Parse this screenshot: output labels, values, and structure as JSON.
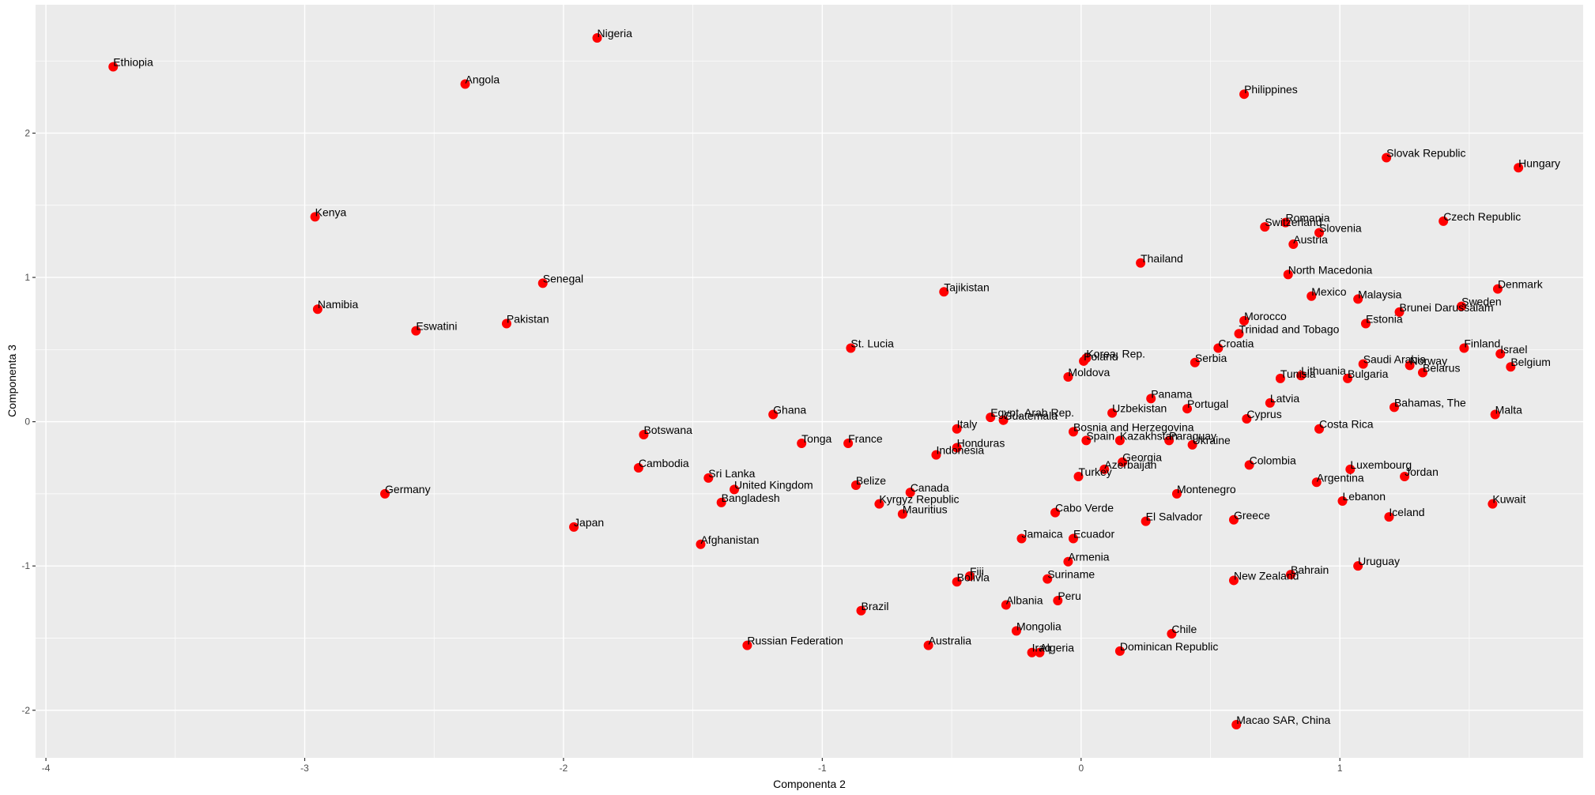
{
  "chart_data": {
    "type": "scatter",
    "title": "",
    "xlabel": "Componenta 2",
    "ylabel": "Componenta 3",
    "xlim": [
      -4.04,
      1.94
    ],
    "ylim": [
      -2.33,
      2.89
    ],
    "x_ticks": [
      -4,
      -3,
      -2,
      -1,
      0,
      1
    ],
    "y_ticks": [
      -2,
      -1,
      0,
      1,
      2
    ],
    "grid": true,
    "legend": null,
    "point_color": "#ff0000",
    "panel_background": "#ebebeb",
    "points": [
      {
        "label": "Ethiopia",
        "x": -3.74,
        "y": 2.46
      },
      {
        "label": "Nigeria",
        "x": -1.87,
        "y": 2.66
      },
      {
        "label": "Angola",
        "x": -2.38,
        "y": 2.34
      },
      {
        "label": "Philippines",
        "x": 0.63,
        "y": 2.27
      },
      {
        "label": "Slovak Republic",
        "x": 1.18,
        "y": 1.83
      },
      {
        "label": "Hungary",
        "x": 1.69,
        "y": 1.76
      },
      {
        "label": "Kenya",
        "x": -2.96,
        "y": 1.42
      },
      {
        "label": "Czech Republic",
        "x": 1.4,
        "y": 1.39
      },
      {
        "label": "Switzerland",
        "x": 0.71,
        "y": 1.35
      },
      {
        "label": "Romania",
        "x": 0.79,
        "y": 1.38
      },
      {
        "label": "Slovenia",
        "x": 0.92,
        "y": 1.31
      },
      {
        "label": "Austria",
        "x": 0.82,
        "y": 1.23
      },
      {
        "label": "Thailand",
        "x": 0.23,
        "y": 1.1
      },
      {
        "label": "North Macedonia",
        "x": 0.8,
        "y": 1.02
      },
      {
        "label": "Senegal",
        "x": -2.08,
        "y": 0.96
      },
      {
        "label": "Tajikistan",
        "x": -0.53,
        "y": 0.9
      },
      {
        "label": "Denmark",
        "x": 1.61,
        "y": 0.92
      },
      {
        "label": "Mexico",
        "x": 0.89,
        "y": 0.87
      },
      {
        "label": "Malaysia",
        "x": 1.07,
        "y": 0.85
      },
      {
        "label": "Namibia",
        "x": -2.95,
        "y": 0.78
      },
      {
        "label": "Sweden",
        "x": 1.47,
        "y": 0.8
      },
      {
        "label": "Brunei Darussalam",
        "x": 1.23,
        "y": 0.76
      },
      {
        "label": "Morocco",
        "x": 0.63,
        "y": 0.7
      },
      {
        "label": "Pakistan",
        "x": -2.22,
        "y": 0.68
      },
      {
        "label": "Estonia",
        "x": 1.1,
        "y": 0.68
      },
      {
        "label": "Eswatini",
        "x": -2.57,
        "y": 0.63
      },
      {
        "label": "Trinidad and Tobago",
        "x": 0.61,
        "y": 0.61
      },
      {
        "label": "Croatia",
        "x": 0.53,
        "y": 0.51
      },
      {
        "label": "St. Lucia",
        "x": -0.89,
        "y": 0.51
      },
      {
        "label": "Finland",
        "x": 1.48,
        "y": 0.51
      },
      {
        "label": "Israel",
        "x": 1.62,
        "y": 0.47
      },
      {
        "label": "Korea, Rep.",
        "x": 0.02,
        "y": 0.44
      },
      {
        "label": "Poland",
        "x": 0.01,
        "y": 0.42
      },
      {
        "label": "Serbia",
        "x": 0.44,
        "y": 0.41
      },
      {
        "label": "Saudi Arabia",
        "x": 1.09,
        "y": 0.4
      },
      {
        "label": "Norway",
        "x": 1.27,
        "y": 0.39
      },
      {
        "label": "Belgium",
        "x": 1.66,
        "y": 0.38
      },
      {
        "label": "Belarus",
        "x": 1.32,
        "y": 0.34
      },
      {
        "label": "Lithuania",
        "x": 0.85,
        "y": 0.32
      },
      {
        "label": "Bulgaria",
        "x": 1.03,
        "y": 0.3
      },
      {
        "label": "Tunisia",
        "x": 0.77,
        "y": 0.3
      },
      {
        "label": "Moldova",
        "x": -0.05,
        "y": 0.31
      },
      {
        "label": "Panama",
        "x": 0.27,
        "y": 0.16
      },
      {
        "label": "Latvia",
        "x": 0.73,
        "y": 0.13
      },
      {
        "label": "Bahamas, The",
        "x": 1.21,
        "y": 0.1
      },
      {
        "label": "Portugal",
        "x": 0.41,
        "y": 0.09
      },
      {
        "label": "Uzbekistan",
        "x": 0.12,
        "y": 0.06
      },
      {
        "label": "Ghana",
        "x": -1.19,
        "y": 0.05
      },
      {
        "label": "Malta",
        "x": 1.6,
        "y": 0.05
      },
      {
        "label": "Egypt, Arab Rep.",
        "x": -0.35,
        "y": 0.03
      },
      {
        "label": "Guatemala",
        "x": -0.3,
        "y": 0.01
      },
      {
        "label": "Cyprus",
        "x": 0.64,
        "y": 0.02
      },
      {
        "label": "Italy",
        "x": -0.48,
        "y": -0.05
      },
      {
        "label": "Costa Rica",
        "x": 0.92,
        "y": -0.05
      },
      {
        "label": "Bosnia and Herzegovina",
        "x": -0.03,
        "y": -0.07
      },
      {
        "label": "Botswana",
        "x": -1.69,
        "y": -0.09
      },
      {
        "label": "Spain",
        "x": 0.02,
        "y": -0.13
      },
      {
        "label": "Kazakhstan",
        "x": 0.15,
        "y": -0.13
      },
      {
        "label": "Paraguay",
        "x": 0.34,
        "y": -0.13
      },
      {
        "label": "Tonga",
        "x": -1.08,
        "y": -0.15
      },
      {
        "label": "France",
        "x": -0.9,
        "y": -0.15
      },
      {
        "label": "Ukraine",
        "x": 0.43,
        "y": -0.16
      },
      {
        "label": "Honduras",
        "x": -0.48,
        "y": -0.18
      },
      {
        "label": "Indonesia",
        "x": -0.56,
        "y": -0.23
      },
      {
        "label": "Georgia",
        "x": 0.16,
        "y": -0.28
      },
      {
        "label": "Colombia",
        "x": 0.65,
        "y": -0.3
      },
      {
        "label": "Cambodia",
        "x": -1.71,
        "y": -0.32
      },
      {
        "label": "Azerbaijan",
        "x": 0.09,
        "y": -0.33
      },
      {
        "label": "Luxembourg",
        "x": 1.04,
        "y": -0.33
      },
      {
        "label": "Sri Lanka",
        "x": -1.44,
        "y": -0.39
      },
      {
        "label": "Jordan",
        "x": 1.25,
        "y": -0.38
      },
      {
        "label": "Turkey",
        "x": -0.01,
        "y": -0.38
      },
      {
        "label": "Argentina",
        "x": 0.91,
        "y": -0.42
      },
      {
        "label": "United Kingdom",
        "x": -1.34,
        "y": -0.47
      },
      {
        "label": "Belize",
        "x": -0.87,
        "y": -0.44
      },
      {
        "label": "Canada",
        "x": -0.66,
        "y": -0.49
      },
      {
        "label": "Montenegro",
        "x": 0.37,
        "y": -0.5
      },
      {
        "label": "Germany",
        "x": -2.69,
        "y": -0.5
      },
      {
        "label": "Lebanon",
        "x": 1.01,
        "y": -0.55
      },
      {
        "label": "Bangladesh",
        "x": -1.39,
        "y": -0.56
      },
      {
        "label": "Kyrgyz Republic",
        "x": -0.78,
        "y": -0.57
      },
      {
        "label": "Kuwait",
        "x": 1.59,
        "y": -0.57
      },
      {
        "label": "Mauritius",
        "x": -0.69,
        "y": -0.64
      },
      {
        "label": "Cabo Verde",
        "x": -0.1,
        "y": -0.63
      },
      {
        "label": "Iceland",
        "x": 1.19,
        "y": -0.66
      },
      {
        "label": "Greece",
        "x": 0.59,
        "y": -0.68
      },
      {
        "label": "El Salvador",
        "x": 0.25,
        "y": -0.69
      },
      {
        "label": "Japan",
        "x": -1.96,
        "y": -0.73
      },
      {
        "label": "Jamaica",
        "x": -0.23,
        "y": -0.81
      },
      {
        "label": "Ecuador",
        "x": -0.03,
        "y": -0.81
      },
      {
        "label": "Afghanistan",
        "x": -1.47,
        "y": -0.85
      },
      {
        "label": "Armenia",
        "x": -0.05,
        "y": -0.97
      },
      {
        "label": "Uruguay",
        "x": 1.07,
        "y": -1.0
      },
      {
        "label": "Bahrain",
        "x": 0.81,
        "y": -1.06
      },
      {
        "label": "Fiji",
        "x": -0.43,
        "y": -1.07
      },
      {
        "label": "Bolivia",
        "x": -0.48,
        "y": -1.11
      },
      {
        "label": "Suriname",
        "x": -0.13,
        "y": -1.09
      },
      {
        "label": "New Zealand",
        "x": 0.59,
        "y": -1.1
      },
      {
        "label": "Peru",
        "x": -0.09,
        "y": -1.24
      },
      {
        "label": "Albania",
        "x": -0.29,
        "y": -1.27
      },
      {
        "label": "Brazil",
        "x": -0.85,
        "y": -1.31
      },
      {
        "label": "Mongolia",
        "x": -0.25,
        "y": -1.45
      },
      {
        "label": "Chile",
        "x": 0.35,
        "y": -1.47
      },
      {
        "label": "Russian Federation",
        "x": -1.29,
        "y": -1.55
      },
      {
        "label": "Australia",
        "x": -0.59,
        "y": -1.55
      },
      {
        "label": "Iraq",
        "x": -0.19,
        "y": -1.6
      },
      {
        "label": "Algeria",
        "x": -0.16,
        "y": -1.6
      },
      {
        "label": "Dominican Republic",
        "x": 0.15,
        "y": -1.59
      },
      {
        "label": "Macao SAR, China",
        "x": 0.6,
        "y": -2.1
      }
    ]
  }
}
